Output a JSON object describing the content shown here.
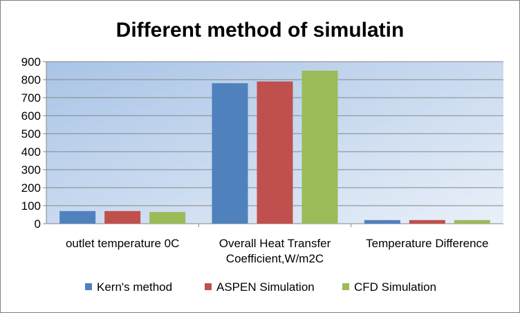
{
  "chart_data": {
    "type": "bar",
    "title": "Different method of simulatin",
    "xlabel": "",
    "ylabel": "",
    "ylim": [
      0,
      900
    ],
    "yticks": [
      0,
      100,
      200,
      300,
      400,
      500,
      600,
      700,
      800,
      900
    ],
    "grid": true,
    "legend_position": "bottom",
    "categories": [
      [
        "outlet temperature 0C"
      ],
      [
        "Overall Heat Transfer",
        "Coefficient,W/m2C"
      ],
      [
        "Temperature Difference"
      ]
    ],
    "series": [
      {
        "name": "Kern's method",
        "color": "#4f81bd",
        "values": [
          70,
          780,
          20
        ]
      },
      {
        "name": "ASPEN Simulation",
        "color": "#c0504d",
        "values": [
          70,
          790,
          20
        ]
      },
      {
        "name": "CFD Simulation",
        "color": "#9bbb59",
        "values": [
          65,
          850,
          20
        ]
      }
    ]
  }
}
